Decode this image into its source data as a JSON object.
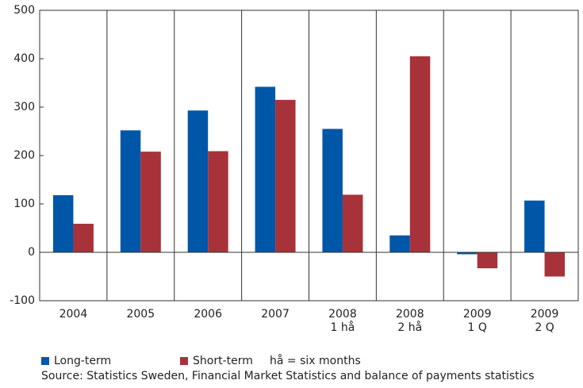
{
  "chart_data": {
    "type": "bar",
    "categories": [
      [
        "2004"
      ],
      [
        "2005"
      ],
      [
        "2006"
      ],
      [
        "2007"
      ],
      [
        "2008",
        "1 hå"
      ],
      [
        "2008",
        "2 hå"
      ],
      [
        "2009",
        "1 Q"
      ],
      [
        "2009",
        "2 Q"
      ]
    ],
    "series": [
      {
        "name": "Long-term",
        "color": "#0057a8",
        "values": [
          118,
          252,
          293,
          342,
          255,
          35,
          -4,
          107
        ]
      },
      {
        "name": "Short-term",
        "color": "#a8323a",
        "values": [
          59,
          208,
          209,
          315,
          119,
          405,
          -33,
          -50
        ]
      }
    ],
    "ylim": [
      -100,
      500
    ],
    "yticks": [
      -100,
      0,
      100,
      200,
      300,
      400,
      500
    ],
    "annotation": "hå = six months",
    "source": "Source: Statistics Sweden, Financial Market Statistics and balance of payments statistics"
  }
}
